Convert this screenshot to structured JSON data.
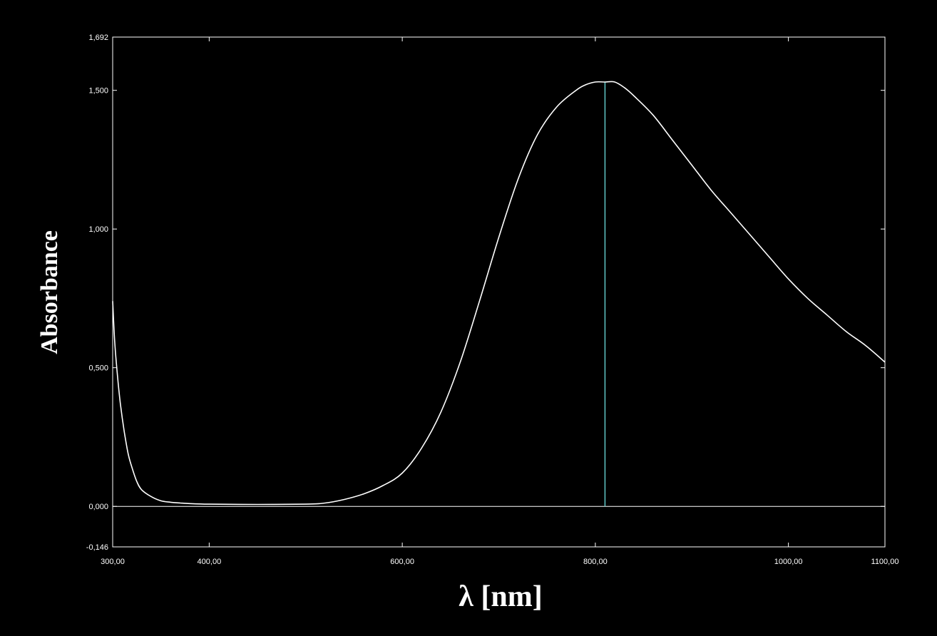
{
  "chart_data": {
    "type": "line",
    "title": "",
    "xlabel": "λ [nm]",
    "ylabel": "Absorbance",
    "xlim": [
      300,
      1100
    ],
    "ylim": [
      -0.146,
      1.692
    ],
    "x_ticks": [
      {
        "value": 300,
        "label": "300,00"
      },
      {
        "value": 400,
        "label": "400,00"
      },
      {
        "value": 600,
        "label": "600,00"
      },
      {
        "value": 800,
        "label": "800,00"
      },
      {
        "value": 1000,
        "label": "1000,00"
      },
      {
        "value": 1100,
        "label": "1100,00"
      }
    ],
    "y_ticks": [
      {
        "value": -0.146,
        "label": "-0,146"
      },
      {
        "value": 0,
        "label": "0,000"
      },
      {
        "value": 0.5,
        "label": "0,500"
      },
      {
        "value": 1.0,
        "label": "1,000"
      },
      {
        "value": 1.5,
        "label": "1,500"
      },
      {
        "value": 1.692,
        "label": "1,692"
      }
    ],
    "grid": false,
    "legend": "none",
    "marker_line_x": 810,
    "series": [
      {
        "color": "#ffffff",
        "x": [
          300,
          302,
          305,
          308,
          312,
          316,
          320,
          325,
          330,
          340,
          350,
          360,
          370,
          380,
          400,
          450,
          500,
          520,
          540,
          560,
          580,
          600,
          620,
          640,
          660,
          680,
          700,
          720,
          740,
          760,
          780,
          790,
          800,
          810,
          820,
          830,
          840,
          860,
          880,
          900,
          920,
          940,
          960,
          980,
          1000,
          1020,
          1040,
          1060,
          1080,
          1100
        ],
        "y": [
          0.74,
          0.6,
          0.47,
          0.37,
          0.27,
          0.19,
          0.14,
          0.09,
          0.06,
          0.035,
          0.02,
          0.015,
          0.012,
          0.01,
          0.008,
          0.007,
          0.008,
          0.012,
          0.025,
          0.045,
          0.075,
          0.12,
          0.21,
          0.34,
          0.52,
          0.74,
          0.97,
          1.18,
          1.34,
          1.44,
          1.5,
          1.52,
          1.53,
          1.53,
          1.53,
          1.51,
          1.48,
          1.41,
          1.32,
          1.23,
          1.14,
          1.06,
          0.98,
          0.9,
          0.82,
          0.75,
          0.69,
          0.63,
          0.58,
          0.52
        ]
      }
    ]
  },
  "colors": {
    "background": "#000000",
    "axes": "#ffffff",
    "curve": "#ffffff",
    "marker_line": "#5fc8c8"
  }
}
